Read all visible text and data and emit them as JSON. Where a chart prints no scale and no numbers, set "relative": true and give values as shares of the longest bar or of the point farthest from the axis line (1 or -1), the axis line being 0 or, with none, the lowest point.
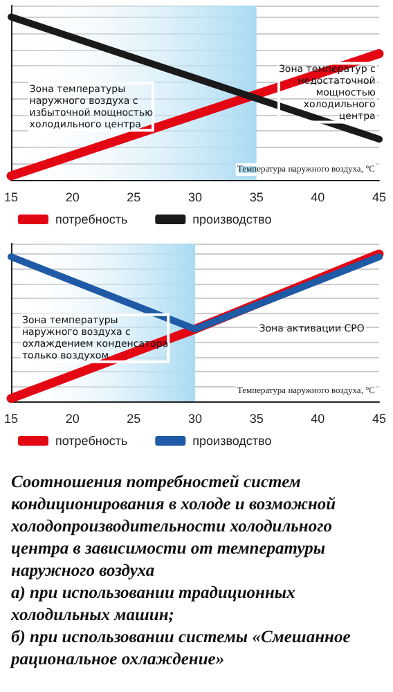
{
  "chart_data": [
    {
      "type": "line",
      "relative": true,
      "x": [
        15,
        45
      ],
      "xlim": [
        15,
        45
      ],
      "xticks": [
        15,
        20,
        25,
        30,
        35,
        40,
        45
      ],
      "xlabel": "Температура наружного воздуха, °C",
      "grid": "y",
      "legend": "bottom",
      "series": [
        {
          "name": "потребность",
          "color": "#e30613",
          "values": [
            0.025,
            0.775
          ]
        },
        {
          "name": "производство",
          "color": "#1a1a1a",
          "values": [
            1,
            0.25
          ]
        }
      ],
      "bands": [
        {
          "axis": "x",
          "from": 15,
          "to": 35,
          "color": "#a9daf2"
        }
      ],
      "annotations": [
        "Зона температуры\nнаружного воздуха с\nизбыточной мощностью\nхолодильного центра",
        "Зона температур с\nнедостаточной\nмощностью\nхолодильного\nцентра"
      ]
    },
    {
      "type": "line",
      "relative": true,
      "x": [
        15,
        30,
        45
      ],
      "xlim": [
        15,
        45
      ],
      "xticks": [
        15,
        20,
        25,
        30,
        35,
        40,
        45
      ],
      "xlabel": "Температура наружного воздуха, °C",
      "grid": "y",
      "legend": "bottom",
      "series": [
        {
          "name": "потребность",
          "color": "#e30613",
          "values": [
            0.02,
            0.49,
            1
          ]
        },
        {
          "name": "производство",
          "color": "#1f5aa6",
          "values": [
            0.98,
            0.49,
            0.98
          ]
        }
      ],
      "bands": [
        {
          "axis": "x",
          "from": 15,
          "to": 30,
          "color": "#a9daf2"
        }
      ],
      "annotations": [
        "Зона температуры\nнаружного воздуха с\nохлаждением конденсатора\nтолько воздухом",
        "Зона активации СРО",
        "Соотношения потребностей систем кондиционирования в холоде и возможной холодопроизводительности холодильного центра в зависимости от температуры наружного воздуха\nа) при использовании традиционных холодильных машин;\nб) при использовании системы «Смешанное рациональное охлаждение»"
      ]
    }
  ]
}
